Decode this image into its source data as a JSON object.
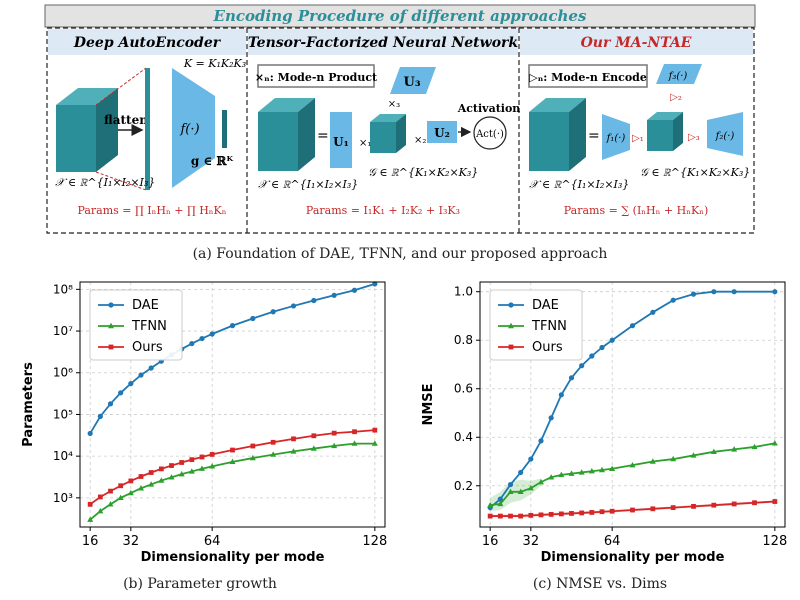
{
  "figure": {
    "header": "Encoding Procedure of different approaches",
    "captions": {
      "a": "(a) Foundation of DAE, TFNN, and our proposed approach",
      "b": "(b) Parameter growth",
      "c": "(c) NMSE vs. Dims"
    },
    "panels": {
      "dae": {
        "title": "Deep AutoEncoder",
        "flatten": "flatten",
        "func": "f(·)",
        "k_eq": "K = K₁K₂K₃",
        "g_vec": "g ∈ ℝᴷ",
        "x_tensor": "𝒳 ∈ ℝ^{I₁×I₂×I₃}",
        "params": "Params = ∏ IₙHₙ + ∏ HₙKₙ"
      },
      "tfnn": {
        "title": "Tensor-Factorized Neural Network",
        "legend": "×ₙ: Mode-n Product",
        "u1": "U₁",
        "u2": "U₂",
        "u3": "U₃",
        "x1": "×₁",
        "x2": "×₂",
        "x3": "×₃",
        "eq": "=",
        "activation": "Activation",
        "act": "Act(·)",
        "x_tensor": "𝒳 ∈ ℝ^{I₁×I₂×I₃}",
        "g_tensor": "𝒢 ∈ ℝ^{K₁×K₂×K₃}",
        "params": "Params = I₁K₁ + I₂K₂ + I₃K₃"
      },
      "ours": {
        "title": "Our MA-NTAE",
        "legend": "▷ₙ: Mode-n Encode",
        "f1": "f₁(·)",
        "f2": "f₂(·)",
        "f3": "f₃(·)",
        "e1": "▷₁",
        "e2": "▷₂",
        "e3": "▷₃",
        "eq": "=",
        "x_tensor": "𝒳 ∈ ℝ^{I₁×I₂×I₃}",
        "g_tensor": "𝒢 ∈ ℝ^{K₁×K₂×K₃}",
        "params": "Params = ∑ (IₙHₙ + HₙKₙ)"
      }
    },
    "colors": {
      "header_bg": "#e0e0e0",
      "panel_title_bg": "#dde9f5",
      "teal": "#2a8f99",
      "light_blue": "#6ab8e6",
      "red": "#c62828",
      "dae": "#1f77b4",
      "tfnn": "#2ca02c",
      "ours": "#d62728"
    }
  },
  "chart_data": [
    {
      "type": "line",
      "id": "b",
      "xlabel": "Dimensionality per mode",
      "ylabel": "Parameters",
      "yscale": "log",
      "ylim": [
        200,
        150000000
      ],
      "xlim": [
        12,
        132
      ],
      "xticks": [
        16,
        32,
        64,
        128
      ],
      "yticks": [
        1000,
        10000,
        100000,
        1000000,
        10000000,
        100000000
      ],
      "yticklabels": [
        "10³",
        "10⁴",
        "10⁵",
        "10⁶",
        "10⁷",
        "10⁸"
      ],
      "legend_position": "top-left",
      "grid": true,
      "series": [
        {
          "name": "DAE",
          "color": "#1f77b4",
          "marker": "circle",
          "x": [
            16,
            20,
            24,
            28,
            32,
            36,
            40,
            44,
            48,
            52,
            56,
            60,
            64,
            72,
            80,
            88,
            96,
            104,
            112,
            120,
            128
          ],
          "y": [
            35000,
            90000,
            180000,
            330000,
            550000,
            880000,
            1300000,
            1900000,
            2700000,
            3700000,
            5000000,
            6600000,
            8500000,
            13500000,
            20000000,
            29000000,
            40000000,
            54000000,
            72000000,
            95000000,
            135000000
          ]
        },
        {
          "name": "TFNN",
          "color": "#2ca02c",
          "marker": "triangle",
          "x": [
            16,
            20,
            24,
            28,
            32,
            36,
            40,
            44,
            48,
            52,
            56,
            60,
            64,
            72,
            80,
            88,
            96,
            104,
            112,
            120,
            128
          ],
          "y": [
            300,
            480,
            700,
            1000,
            1300,
            1700,
            2100,
            2600,
            3100,
            3700,
            4300,
            5000,
            5700,
            7300,
            9000,
            10900,
            13000,
            15200,
            17600,
            20000,
            20000
          ]
        },
        {
          "name": "Ours",
          "color": "#d62728",
          "marker": "square",
          "x": [
            16,
            20,
            24,
            28,
            32,
            36,
            40,
            44,
            48,
            52,
            56,
            60,
            64,
            72,
            80,
            88,
            96,
            104,
            112,
            120,
            128
          ],
          "y": [
            700,
            1050,
            1450,
            1950,
            2550,
            3250,
            4050,
            4950,
            5950,
            7050,
            8250,
            9550,
            11000,
            14000,
            17500,
            21500,
            26000,
            30800,
            35600,
            38500,
            42000
          ]
        }
      ]
    },
    {
      "type": "line",
      "id": "c",
      "xlabel": "Dimensionality per mode",
      "ylabel": "NMSE",
      "yscale": "linear",
      "ylim": [
        0.03,
        1.04
      ],
      "xlim": [
        12,
        132
      ],
      "xticks": [
        16,
        32,
        64,
        128
      ],
      "yticks": [
        0.2,
        0.4,
        0.6,
        0.8,
        1.0
      ],
      "yticklabels": [
        "0.2",
        "0.4",
        "0.6",
        "0.8",
        "1.0"
      ],
      "legend_position": "top-left",
      "grid": true,
      "series": [
        {
          "name": "DAE",
          "color": "#1f77b4",
          "marker": "circle",
          "x": [
            16,
            20,
            24,
            28,
            32,
            36,
            40,
            44,
            48,
            52,
            56,
            60,
            64,
            72,
            80,
            88,
            96,
            104,
            112,
            128
          ],
          "y": [
            0.11,
            0.145,
            0.205,
            0.255,
            0.31,
            0.385,
            0.48,
            0.575,
            0.645,
            0.695,
            0.735,
            0.77,
            0.8,
            0.86,
            0.915,
            0.965,
            0.99,
            1.0,
            1.0,
            1.0
          ]
        },
        {
          "name": "TFNN",
          "color": "#2ca02c",
          "marker": "triangle",
          "x": [
            16,
            20,
            24,
            28,
            32,
            36,
            40,
            44,
            48,
            52,
            56,
            60,
            64,
            72,
            80,
            88,
            96,
            104,
            112,
            120,
            128
          ],
          "y": [
            0.12,
            0.125,
            0.175,
            0.175,
            0.19,
            0.215,
            0.235,
            0.245,
            0.25,
            0.255,
            0.26,
            0.265,
            0.27,
            0.285,
            0.3,
            0.31,
            0.325,
            0.34,
            0.35,
            0.36,
            0.375
          ]
        },
        {
          "name": "Ours",
          "color": "#d62728",
          "marker": "square",
          "x": [
            16,
            20,
            24,
            28,
            32,
            36,
            40,
            44,
            48,
            52,
            56,
            60,
            64,
            72,
            80,
            88,
            96,
            104,
            112,
            120,
            128
          ],
          "y": [
            0.075,
            0.075,
            0.075,
            0.075,
            0.078,
            0.08,
            0.082,
            0.084,
            0.086,
            0.088,
            0.09,
            0.093,
            0.095,
            0.1,
            0.105,
            0.11,
            0.115,
            0.12,
            0.125,
            0.13,
            0.135
          ]
        }
      ],
      "bands": [
        {
          "series": "TFNN",
          "color": "#2ca02c",
          "x": [
            16,
            20,
            24,
            28,
            32,
            36
          ],
          "lower": [
            0.095,
            0.1,
            0.13,
            0.14,
            0.165,
            0.2
          ],
          "upper": [
            0.15,
            0.175,
            0.215,
            0.225,
            0.22,
            0.23
          ]
        },
        {
          "series": "Ours",
          "color": "#d62728",
          "x": [
            16,
            32,
            64,
            128
          ],
          "lower": [
            0.07,
            0.072,
            0.09,
            0.13
          ],
          "upper": [
            0.08,
            0.084,
            0.1,
            0.14
          ]
        }
      ]
    }
  ]
}
